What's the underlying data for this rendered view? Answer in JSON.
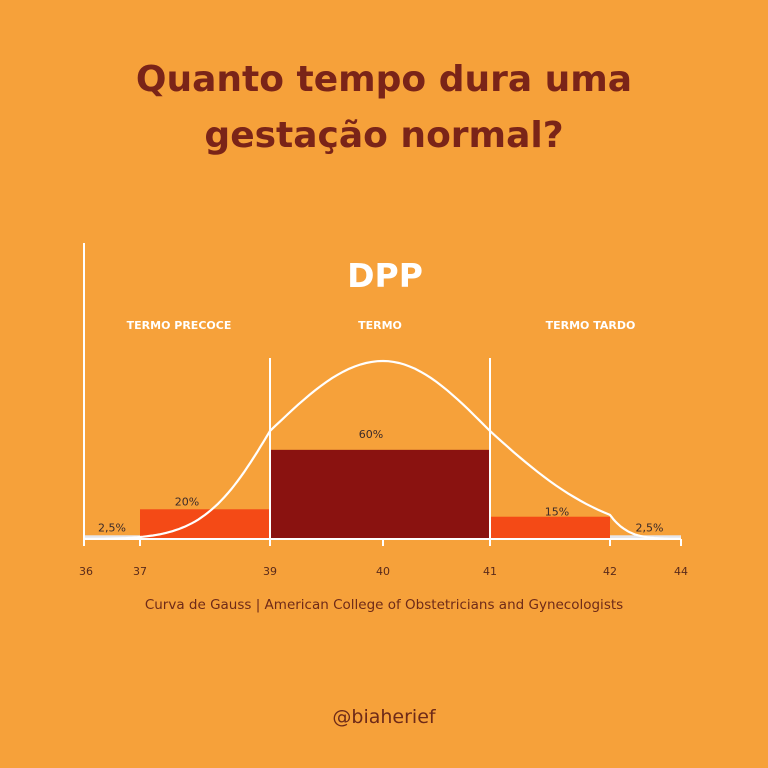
{
  "title": {
    "line1": "Quanto tempo dura uma",
    "line2": "gestação normal?"
  },
  "chart_data": {
    "type": "bar",
    "title": "DPP",
    "x_ticks": [
      36,
      37,
      39,
      40,
      41,
      42,
      44
    ],
    "xlim": [
      36,
      44
    ],
    "ylim": [
      0,
      80
    ],
    "bars": [
      {
        "from": 36,
        "to": 37,
        "value": 2.5,
        "label": "2,5%",
        "color": "#E6E6EA"
      },
      {
        "from": 37,
        "to": 39,
        "value": 20,
        "label": "20%",
        "color": "#F44A16"
      },
      {
        "from": 39,
        "to": 41,
        "value": 60,
        "label": "60%",
        "color": "#8A1210"
      },
      {
        "from": 41,
        "to": 42,
        "value": 15,
        "label": "15%",
        "color": "#F44A16"
      },
      {
        "from": 42,
        "to": 44,
        "value": 2.5,
        "label": "2,5%",
        "color": "#E6E6EA"
      }
    ],
    "regions": [
      {
        "label": "TERMO PRECOCE",
        "from": 37,
        "to": 39
      },
      {
        "label": "TERMO",
        "from": 39,
        "to": 41
      },
      {
        "label": "TERMO TARDO",
        "from": 41,
        "to": 44
      }
    ],
    "dividers": [
      39,
      41
    ],
    "curve": {
      "type": "normal",
      "mean": 40,
      "peak": 60
    }
  },
  "caption": "Curva de Gauss | American College of Obstetricians and Gynecologists",
  "handle": "@biaherief",
  "colors": {
    "background": "#F6A13A",
    "title": "#7A2418",
    "axis": "#FFFFFF"
  }
}
